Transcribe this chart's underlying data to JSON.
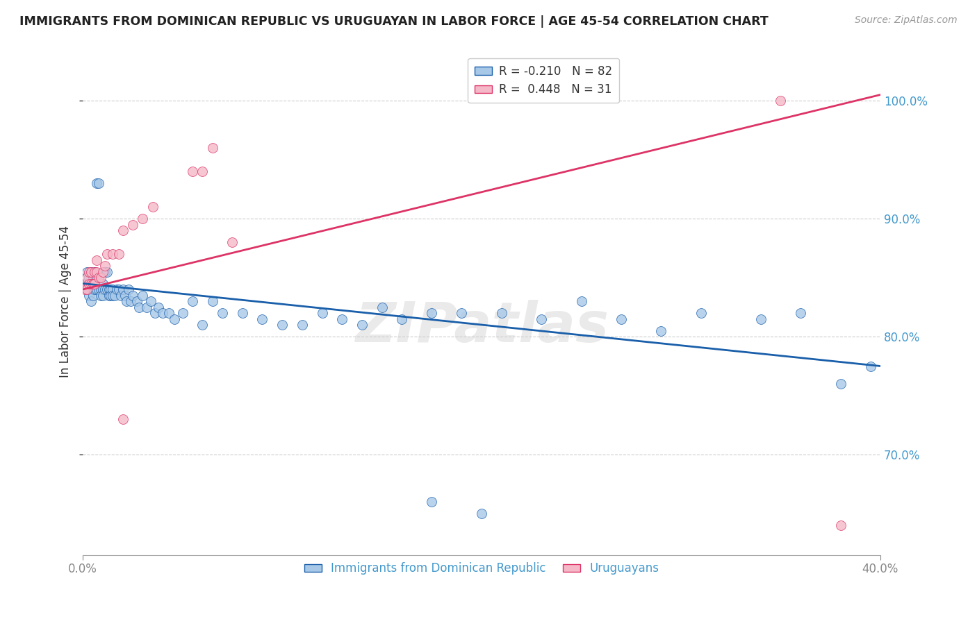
{
  "title": "IMMIGRANTS FROM DOMINICAN REPUBLIC VS URUGUAYAN IN LABOR FORCE | AGE 45-54 CORRELATION CHART",
  "source": "Source: ZipAtlas.com",
  "ylabel": "In Labor Force | Age 45-54",
  "xlim": [
    0.0,
    0.4
  ],
  "ylim": [
    0.615,
    1.045
  ],
  "yticks": [
    0.7,
    0.8,
    0.9,
    1.0
  ],
  "xticks": [
    0.0,
    0.4
  ],
  "legend_r_blue": "-0.210",
  "legend_n_blue": "82",
  "legend_r_pink": "0.448",
  "legend_n_pink": "31",
  "legend_label_blue": "Immigrants from Dominican Republic",
  "legend_label_pink": "Uruguayans",
  "blue_color": "#a8c8e8",
  "pink_color": "#f4b8c8",
  "line_blue_color": "#1a5faa",
  "line_pink_color": "#dd3366",
  "watermark": "ZIPatlas",
  "blue_x": [
    0.001,
    0.002,
    0.002,
    0.003,
    0.003,
    0.003,
    0.004,
    0.004,
    0.004,
    0.005,
    0.005,
    0.005,
    0.006,
    0.006,
    0.007,
    0.007,
    0.007,
    0.008,
    0.008,
    0.009,
    0.009,
    0.01,
    0.01,
    0.01,
    0.011,
    0.011,
    0.012,
    0.012,
    0.013,
    0.013,
    0.014,
    0.014,
    0.015,
    0.015,
    0.016,
    0.017,
    0.018,
    0.019,
    0.02,
    0.021,
    0.022,
    0.023,
    0.024,
    0.025,
    0.027,
    0.028,
    0.03,
    0.032,
    0.034,
    0.036,
    0.038,
    0.04,
    0.043,
    0.046,
    0.05,
    0.055,
    0.06,
    0.065,
    0.07,
    0.08,
    0.09,
    0.1,
    0.11,
    0.12,
    0.13,
    0.14,
    0.15,
    0.16,
    0.175,
    0.19,
    0.21,
    0.23,
    0.25,
    0.27,
    0.29,
    0.31,
    0.34,
    0.36,
    0.38,
    0.395,
    0.2,
    0.175
  ],
  "blue_y": [
    0.845,
    0.855,
    0.84,
    0.85,
    0.84,
    0.835,
    0.855,
    0.845,
    0.83,
    0.85,
    0.84,
    0.835,
    0.855,
    0.84,
    0.85,
    0.84,
    0.93,
    0.84,
    0.93,
    0.84,
    0.835,
    0.845,
    0.84,
    0.835,
    0.855,
    0.84,
    0.855,
    0.84,
    0.84,
    0.835,
    0.84,
    0.835,
    0.84,
    0.835,
    0.835,
    0.84,
    0.84,
    0.835,
    0.84,
    0.835,
    0.83,
    0.84,
    0.83,
    0.835,
    0.83,
    0.825,
    0.835,
    0.825,
    0.83,
    0.82,
    0.825,
    0.82,
    0.82,
    0.815,
    0.82,
    0.83,
    0.81,
    0.83,
    0.82,
    0.82,
    0.815,
    0.81,
    0.81,
    0.82,
    0.815,
    0.81,
    0.825,
    0.815,
    0.82,
    0.82,
    0.82,
    0.815,
    0.83,
    0.815,
    0.805,
    0.82,
    0.815,
    0.82,
    0.76,
    0.775,
    0.65,
    0.66
  ],
  "pink_x": [
    0.001,
    0.002,
    0.002,
    0.003,
    0.003,
    0.004,
    0.004,
    0.005,
    0.005,
    0.006,
    0.006,
    0.007,
    0.007,
    0.008,
    0.009,
    0.01,
    0.011,
    0.012,
    0.015,
    0.018,
    0.02,
    0.025,
    0.03,
    0.035,
    0.055,
    0.065,
    0.02,
    0.06,
    0.075,
    0.35,
    0.38
  ],
  "pink_y": [
    0.84,
    0.84,
    0.85,
    0.845,
    0.855,
    0.845,
    0.855,
    0.845,
    0.845,
    0.845,
    0.855,
    0.855,
    0.865,
    0.85,
    0.85,
    0.855,
    0.86,
    0.87,
    0.87,
    0.87,
    0.89,
    0.895,
    0.9,
    0.91,
    0.94,
    0.96,
    0.73,
    0.94,
    0.88,
    1.0,
    0.64
  ]
}
